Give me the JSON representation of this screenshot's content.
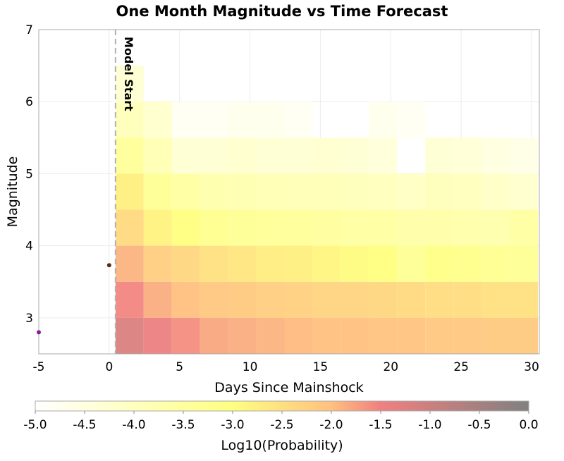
{
  "chart_data": {
    "type": "heatmap",
    "title": "One Month Magnitude vs Time Forecast",
    "xlabel": "Days Since Mainshock",
    "ylabel": "Magnitude",
    "xlim": [
      -5,
      30.55
    ],
    "ylim": [
      2.5,
      7
    ],
    "xticks": [
      -5,
      0,
      5,
      10,
      15,
      20,
      25,
      30
    ],
    "yticks": [
      3,
      4,
      5,
      6,
      7
    ],
    "grid": true,
    "cell_x_start": 0.45,
    "cell_x_width": 2,
    "cell_y_start": 2.5,
    "cell_y_height": 0.5,
    "rows_log10_probability": [
      [
        -1.2,
        -1.45,
        -1.6,
        -1.8,
        -1.85,
        -1.9,
        -1.95,
        -2.0,
        -2.0,
        -2.05,
        -2.05,
        -2.1,
        -2.1,
        -2.15,
        -2.15
      ],
      [
        -1.55,
        -1.85,
        -2.0,
        -2.1,
        -2.15,
        -2.2,
        -2.25,
        -2.3,
        -2.3,
        -2.35,
        -2.4,
        -2.45,
        -2.45,
        -2.5,
        -2.5
      ],
      [
        -1.9,
        -2.2,
        -2.35,
        -2.5,
        -2.6,
        -2.7,
        -2.75,
        -2.85,
        -2.95,
        -3.0,
        -3.3,
        -3.1,
        -3.15,
        -3.25,
        -3.3
      ],
      [
        -2.4,
        -2.8,
        -3.0,
        -3.2,
        -3.3,
        -3.35,
        -3.4,
        -3.45,
        -3.5,
        -3.5,
        -3.6,
        -3.6,
        -3.65,
        -3.7,
        -3.5
      ],
      [
        -2.75,
        -3.3,
        -3.5,
        -3.7,
        -3.75,
        -3.8,
        -3.85,
        -3.85,
        -3.9,
        -3.95,
        -4.05,
        -3.9,
        -3.95,
        -4.1,
        -4.2
      ],
      [
        -3.4,
        -3.8,
        -4.3,
        -4.3,
        -4.2,
        -4.3,
        -4.3,
        -4.25,
        -4.3,
        -4.4,
        -5.0,
        -4.3,
        -4.35,
        -4.5,
        -4.6
      ],
      [
        -3.9,
        -4.2,
        -4.8,
        -4.8,
        -4.7,
        -4.7,
        -4.8,
        -5.0,
        -5.0,
        -4.7,
        -4.8,
        -5.0,
        -5.0,
        -5.0,
        -5.0
      ],
      [
        -4.3,
        -5.0,
        -5.0,
        -5.0,
        -5.0,
        -5.0,
        -5.0,
        -5.0,
        -5.0,
        -5.0,
        -5.0,
        -5.0,
        -5.0,
        -5.0,
        -5.0
      ]
    ],
    "points": [
      {
        "x": 0,
        "y": 3.73,
        "color": "#5a2d0c"
      },
      {
        "x": -5,
        "y": 2.8,
        "color": "#8b1a9b"
      }
    ],
    "model_start": {
      "x": 0.45,
      "label": "Model Start"
    },
    "colorbar": {
      "label": "Log10(Probability)",
      "range": [
        -5.0,
        0.0
      ],
      "ticks": [
        "-5.0",
        "-4.5",
        "-4.0",
        "-3.5",
        "-3.0",
        "-2.5",
        "-2.0",
        "-1.5",
        "-1.0",
        "-0.5",
        "0.0"
      ],
      "stops": [
        {
          "v": -5.0,
          "color": "#ffffff"
        },
        {
          "v": -3.0,
          "color": "#ffff80"
        },
        {
          "v": -2.0,
          "color": "#ffc080"
        },
        {
          "v": -1.5,
          "color": "#f08080"
        },
        {
          "v": 0.0,
          "color": "#808080"
        }
      ]
    }
  }
}
